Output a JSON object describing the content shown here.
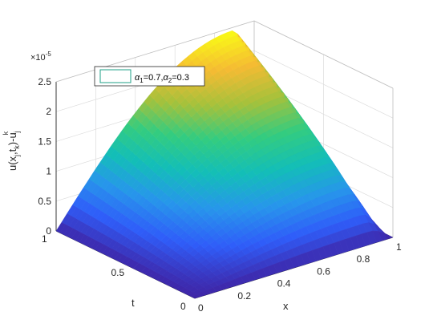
{
  "chart_data": {
    "type": "surface",
    "title": "",
    "xlabel": "x",
    "ylabel": "t",
    "zlabel": "u(x_j,t_k)-u_j^k",
    "zlabel_parts": {
      "a": "u(x",
      "a_sub": "j",
      "b": ",t",
      "b_sub": "k",
      "c": ")-u",
      "c_sub": "j",
      "c_sup": "k"
    },
    "x_ticks": [
      "0",
      "0.2",
      "0.4",
      "0.6",
      "0.8",
      "1"
    ],
    "t_ticks": [
      "0",
      "0.5",
      "1"
    ],
    "z_ticks": [
      "0",
      "0.5",
      "1",
      "1.5",
      "2",
      "2.5"
    ],
    "z_exponent": {
      "base": "×10",
      "power": "-5"
    },
    "xlim": [
      0,
      1
    ],
    "tlim": [
      0,
      1
    ],
    "zlim": [
      0,
      2.5
    ],
    "z_multiplier": 1e-05,
    "surface": {
      "description_formula": "error grows with t and peaks near x≈0.9",
      "peak_value": 2.45,
      "peak_x": 0.9,
      "grid_points": 36
    },
    "colormap": [
      "#3e26a8",
      "#2f5df9",
      "#2796eb",
      "#13beb8",
      "#33cc80",
      "#a6c13b",
      "#f5bb33",
      "#f9fb15"
    ],
    "legend": {
      "label_parts": {
        "a1": "α",
        "a1_sub": "1",
        "v1": "=0.7,",
        "a2": "α",
        "a2_sub": "2",
        "v2": "=0.3"
      },
      "swatch_color": "#1fa187"
    },
    "grid": true
  }
}
